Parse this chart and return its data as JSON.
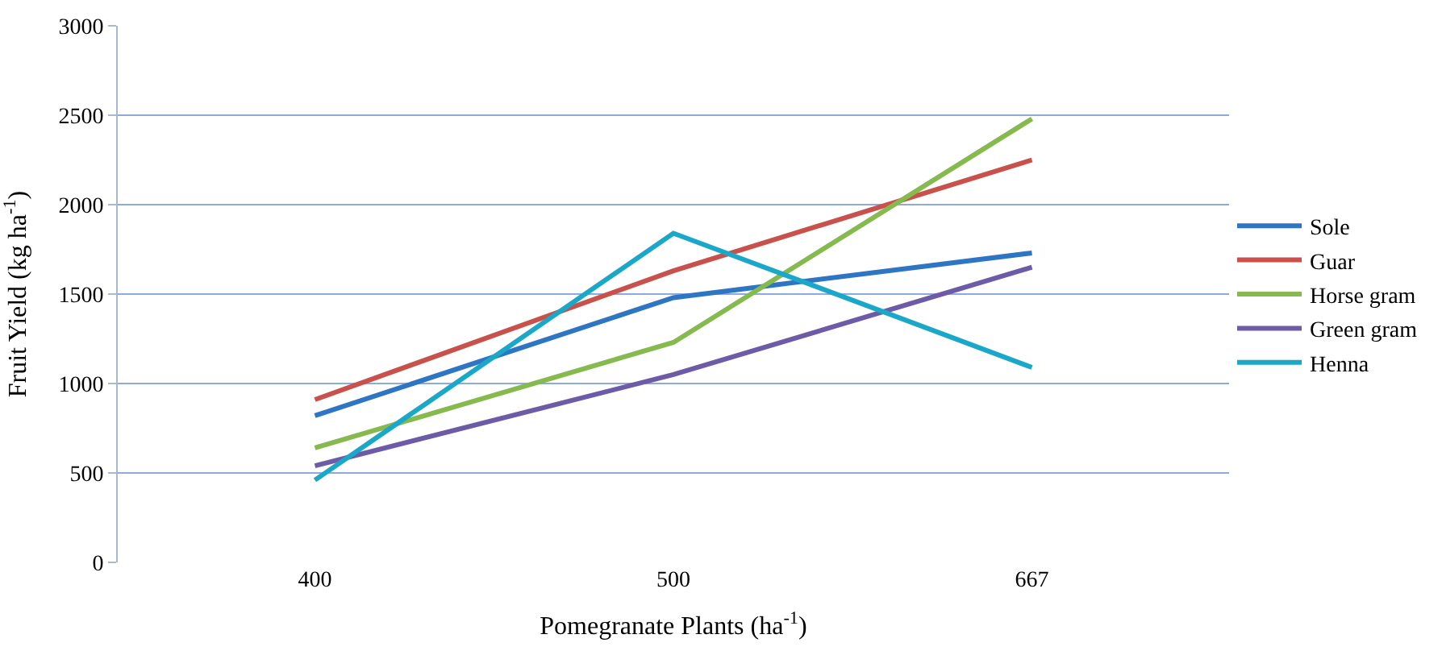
{
  "chart_data": {
    "type": "line",
    "xlabel": "Pomegranate Plants (ha$^{-1}$)",
    "ylabel": "Fruit Yield (kg ha$^{-1}$)",
    "categories": [
      "400",
      "500",
      "667"
    ],
    "series": [
      {
        "name": "Sole",
        "color": "#2e75c4",
        "values": [
          820,
          1480,
          1730
        ]
      },
      {
        "name": "Guar",
        "color": "#c9514b",
        "values": [
          910,
          1630,
          2250
        ]
      },
      {
        "name": "Horse gram",
        "color": "#86ba4f",
        "values": [
          640,
          1230,
          2480
        ]
      },
      {
        "name": "Green gram",
        "color": "#6e5ba8",
        "values": [
          540,
          1050,
          1650
        ]
      },
      {
        "name": "Henna",
        "color": "#1ba8c8",
        "values": [
          460,
          1840,
          1090
        ]
      }
    ],
    "ylim": [
      0,
      3000
    ],
    "yticks": [
      0,
      500,
      1000,
      1500,
      2000,
      2500,
      3000
    ],
    "grid": "y",
    "legend": "right",
    "marker": "none",
    "line_style": "solid"
  }
}
